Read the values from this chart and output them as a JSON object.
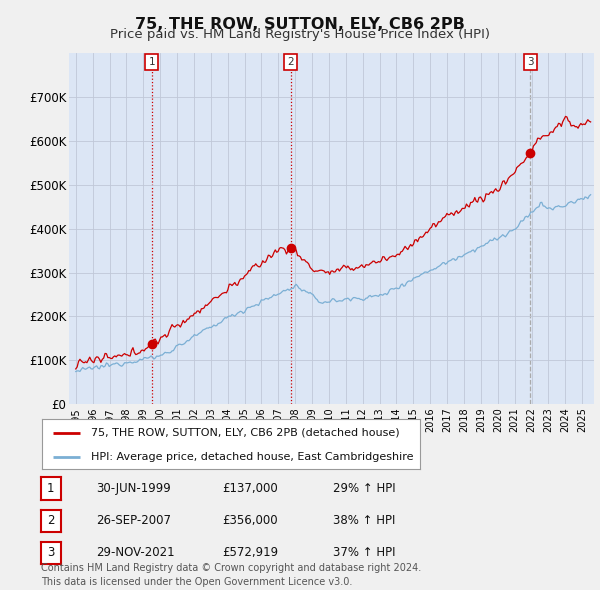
{
  "title": "75, THE ROW, SUTTON, ELY, CB6 2PB",
  "subtitle": "Price paid vs. HM Land Registry's House Price Index (HPI)",
  "title_fontsize": 11.5,
  "subtitle_fontsize": 9.5,
  "ylim": [
    0,
    800000
  ],
  "ytick_values": [
    0,
    100000,
    200000,
    300000,
    400000,
    500000,
    600000,
    700000
  ],
  "ytick_labels": [
    "£0",
    "£100K",
    "£200K",
    "£300K",
    "£400K",
    "£500K",
    "£600K",
    "£700K"
  ],
  "sales": [
    {
      "date_num": 1999.5,
      "price": 137000,
      "label": "1"
    },
    {
      "date_num": 2007.73,
      "price": 356000,
      "label": "2"
    },
    {
      "date_num": 2021.92,
      "price": 572919,
      "label": "3"
    }
  ],
  "vline_dates": [
    1999.5,
    2007.73
  ],
  "vline_grey_dates": [
    2021.92
  ],
  "hpi_color": "#7bafd4",
  "price_color": "#cc0000",
  "vline_color": "#cc0000",
  "vline_grey_color": "#aaaaaa",
  "background_color": "#f0f0f0",
  "plot_bg_color": "#dce6f5",
  "legend_entries": [
    "75, THE ROW, SUTTON, ELY, CB6 2PB (detached house)",
    "HPI: Average price, detached house, East Cambridgeshire"
  ],
  "table_entries": [
    {
      "num": "1",
      "date": "30-JUN-1999",
      "price": "£137,000",
      "hpi": "29% ↑ HPI"
    },
    {
      "num": "2",
      "date": "26-SEP-2007",
      "price": "£356,000",
      "hpi": "38% ↑ HPI"
    },
    {
      "num": "3",
      "date": "29-NOV-2021",
      "price": "£572,919",
      "hpi": "37% ↑ HPI"
    }
  ],
  "footer": "Contains HM Land Registry data © Crown copyright and database right 2024.\nThis data is licensed under the Open Government Licence v3.0.",
  "xlim_start": 1994.6,
  "xlim_end": 2025.7
}
